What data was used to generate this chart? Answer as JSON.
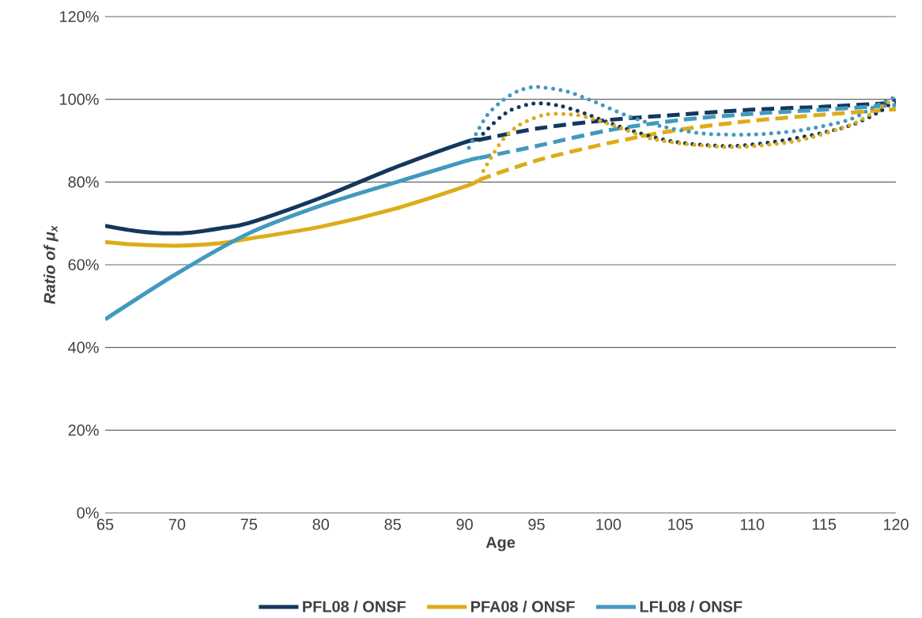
{
  "chart_data": {
    "type": "line",
    "xlabel": "Age",
    "ylabel": "Ratio of μ$_{x}$",
    "xlim": [
      65,
      120
    ],
    "xticks": [
      65,
      70,
      75,
      80,
      85,
      90,
      95,
      100,
      105,
      110,
      115,
      120
    ],
    "ylim": [
      0,
      120
    ],
    "yticks": [
      {
        "value": 0,
        "label": "0%"
      },
      {
        "value": 20,
        "label": "20%"
      },
      {
        "value": 40,
        "label": "40%"
      },
      {
        "value": 60,
        "label": "60%"
      },
      {
        "value": 80,
        "label": "80%"
      },
      {
        "value": 100,
        "label": "100%"
      },
      {
        "value": 120,
        "label": "120%"
      }
    ],
    "grid": "y",
    "legend": "bottom",
    "marker": "none",
    "series": [
      {
        "name": "PFL08 / ONSF",
        "color": "#14375e",
        "line_style": "solid",
        "x": [
          65,
          67,
          69,
          71,
          73,
          75,
          80,
          85,
          90,
          91
        ],
        "values": [
          69.4,
          68.2,
          67.6,
          67.8,
          68.8,
          70.1,
          76.2,
          83.3,
          89.6,
          90.2
        ]
      },
      {
        "name": "PFA08 / ONSF",
        "color": "#deac1a",
        "line_style": "solid",
        "x": [
          65,
          67,
          70,
          73,
          75,
          80,
          85,
          90,
          91
        ],
        "values": [
          65.5,
          64.9,
          64.6,
          65.2,
          66.3,
          69.2,
          73.4,
          78.9,
          80.5
        ]
      },
      {
        "name": "LFL08 / ONSF",
        "color": "#4299bf",
        "line_style": "solid",
        "x": [
          65,
          70,
          75,
          80,
          85,
          90,
          91
        ],
        "values": [
          46.8,
          57.9,
          67.6,
          74.3,
          79.7,
          85,
          85.8
        ]
      },
      {
        "color": "#14375e",
        "line_style": "dashed",
        "x": [
          91,
          95,
          100,
          105,
          110,
          115,
          120
        ],
        "values": [
          90.2,
          92.9,
          95.0,
          96.3,
          97.5,
          98.2,
          99.2
        ]
      },
      {
        "color": "#4299bf",
        "line_style": "dashed",
        "x": [
          91,
          95,
          100,
          105,
          110,
          115,
          120
        ],
        "values": [
          85.8,
          88.7,
          92.5,
          95.0,
          96.5,
          97.5,
          98.6
        ]
      },
      {
        "color": "#deac1a",
        "line_style": "dashed",
        "x": [
          91,
          95,
          100,
          105,
          110,
          115,
          120
        ],
        "values": [
          80.5,
          85.2,
          89.4,
          92.7,
          94.8,
          96.3,
          97.6
        ]
      },
      {
        "color": "#14375e",
        "line_style": "dotted",
        "x": [
          91,
          91.4,
          93,
          94.8,
          96.5,
          98.1,
          101.2,
          104.5,
          108.5,
          112.4,
          116.5,
          119,
          120
        ],
        "values": [
          90.2,
          92.1,
          97,
          99,
          98.5,
          96.9,
          92.9,
          89.8,
          88.7,
          90.2,
          93.3,
          97.3,
          100.5
        ]
      },
      {
        "color": "#4299bf",
        "line_style": "dotted",
        "x": [
          90.3,
          90.9,
          91.6,
          92.6,
          93.7,
          95,
          97.1,
          98.9,
          101.4,
          103.9,
          106.7,
          110,
          113.3,
          116.7,
          118.7,
          119.8
        ],
        "values": [
          88.3,
          92.3,
          96.3,
          99.6,
          102,
          103,
          101.9,
          99.6,
          95.9,
          93.3,
          91.7,
          91.5,
          92.5,
          95,
          98.6,
          100.3
        ]
      },
      {
        "color": "#deac1a",
        "line_style": "dotted",
        "x": [
          91.3,
          92,
          92.7,
          93.8,
          95.6,
          97.6,
          99,
          100.6,
          103.1,
          106.3,
          109.2,
          113.2,
          117.1,
          119.6
        ],
        "values": [
          82.7,
          86.8,
          90.4,
          93.8,
          96.3,
          96.3,
          95.2,
          93.4,
          90.4,
          88.9,
          88.5,
          90,
          94.2,
          99.6
        ]
      }
    ]
  }
}
